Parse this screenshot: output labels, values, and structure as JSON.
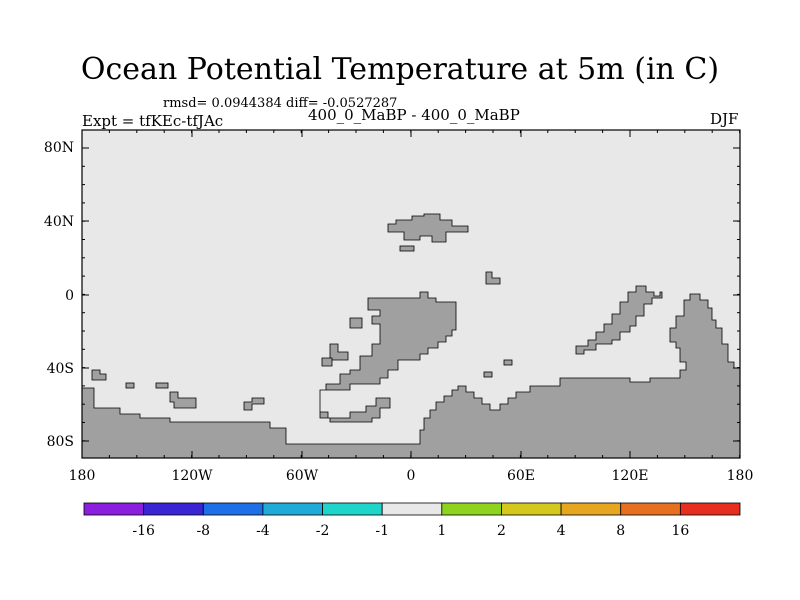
{
  "title": "Ocean Potential Temperature at 5m (in C)",
  "stats": "rmsd= 0.0944384  diff= -0.0527287",
  "expt": "Expt = tfKEc-tfJAc",
  "subtitle": "400_0_MaBP - 400_0_MaBP",
  "season": "DJF",
  "lat_labels": [
    "80N",
    "40N",
    "0",
    "40S",
    "80S"
  ],
  "lon_labels": [
    "180",
    "120W",
    "60W",
    "0",
    "60E",
    "120E",
    "180"
  ],
  "colors": {
    "ocean_fill": "#e8e8e8",
    "land_fill": "#a0a0a0",
    "frame": "#000000"
  },
  "colorbar": {
    "colors": [
      "#8b1fe0",
      "#3a24d4",
      "#1f6fe6",
      "#1faad8",
      "#1fd4c8",
      "#e8e8e8",
      "#8ed41f",
      "#d4c81f",
      "#e6a61f",
      "#e6701f",
      "#e62f1f"
    ],
    "labels": [
      "-16",
      "-8",
      "-4",
      "-2",
      "-1",
      "1",
      "2",
      "4",
      "8",
      "16"
    ]
  }
}
